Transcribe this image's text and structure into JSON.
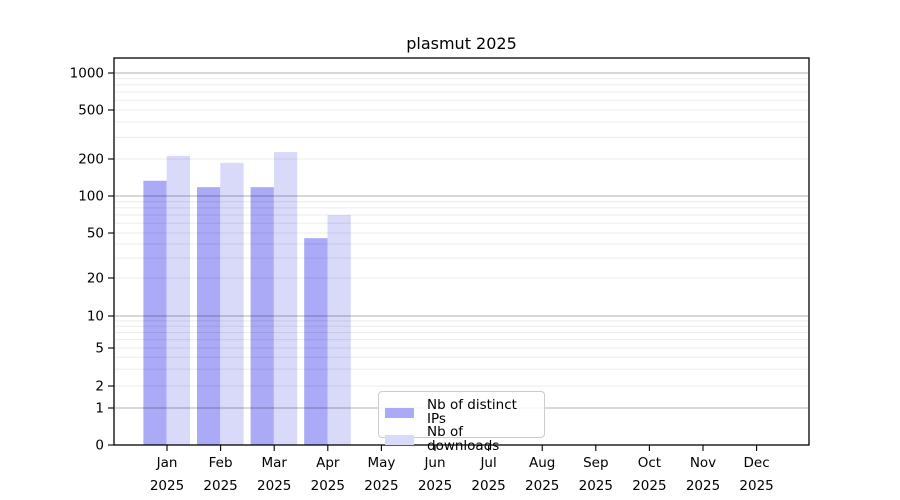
{
  "chart_data": {
    "type": "bar",
    "title": "plasmut 2025",
    "categories": [
      "Jan",
      "Feb",
      "Mar",
      "Apr",
      "May",
      "Jun",
      "Jul",
      "Aug",
      "Sep",
      "Oct",
      "Nov",
      "Dec"
    ],
    "year_label": "2025",
    "series": [
      {
        "name": "Nb of distinct IPs",
        "color": "#aaaaf7",
        "values": [
          133,
          118,
          118,
          45,
          0,
          0,
          0,
          0,
          0,
          0,
          0,
          0
        ]
      },
      {
        "name": "Nb of downloads",
        "color": "#d9d9fa",
        "values": [
          212,
          186,
          228,
          70,
          0,
          0,
          0,
          0,
          0,
          0,
          0,
          0
        ]
      }
    ],
    "y_axis": {
      "scale": "log-like with zero baseline",
      "ticks": [
        0,
        1,
        2,
        5,
        10,
        20,
        50,
        100,
        200,
        500,
        1000
      ],
      "major_gridline_values": [
        1,
        10,
        100,
        1000
      ],
      "ylim": [
        0,
        1300
      ]
    },
    "x_axis": {
      "label_line2": "2025"
    },
    "grid": "horizontal only",
    "legend_position": "inside bottom-center",
    "colors": {
      "axis": "#000000",
      "major_grid": "#b3b3b3",
      "minor_grid": "#eaeaea",
      "text": "#000000"
    }
  }
}
